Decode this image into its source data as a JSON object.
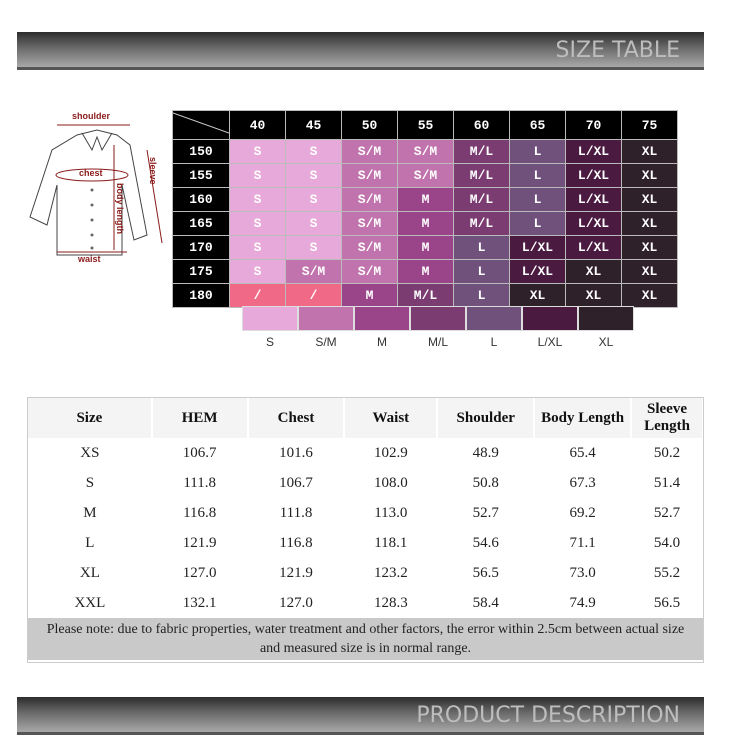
{
  "banners": {
    "top": "SIZE TABLE",
    "bottom": "PRODUCT DESCRIPTION"
  },
  "diagram": {
    "labels": {
      "shoulder": "shoulder",
      "chest": "chest",
      "sleeve": "sleeve",
      "body_length": "body length",
      "waist": "waist"
    }
  },
  "size_grid": {
    "columns": [
      "40",
      "45",
      "50",
      "55",
      "60",
      "65",
      "70",
      "75"
    ],
    "rows": [
      {
        "height": "150",
        "sizes": [
          "S",
          "S",
          "S/M",
          "S/M",
          "M/L",
          "L",
          "L/XL",
          "XL"
        ]
      },
      {
        "height": "155",
        "sizes": [
          "S",
          "S",
          "S/M",
          "S/M",
          "M/L",
          "L",
          "L/XL",
          "XL"
        ]
      },
      {
        "height": "160",
        "sizes": [
          "S",
          "S",
          "S/M",
          "M",
          "M/L",
          "L",
          "L/XL",
          "XL"
        ]
      },
      {
        "height": "165",
        "sizes": [
          "S",
          "S",
          "S/M",
          "M",
          "M/L",
          "L",
          "L/XL",
          "XL"
        ]
      },
      {
        "height": "170",
        "sizes": [
          "S",
          "S",
          "S/M",
          "M",
          "L",
          "L/XL",
          "L/XL",
          "XL"
        ]
      },
      {
        "height": "175",
        "sizes": [
          "S",
          "S/M",
          "S/M",
          "M",
          "L",
          "L/XL",
          "XL",
          "XL"
        ]
      },
      {
        "height": "180",
        "sizes": [
          "/",
          "/",
          "M",
          "M/L",
          "L",
          "XL",
          "XL",
          "XL"
        ]
      }
    ],
    "colors": {
      "S": "#e6a9d9",
      "S/M": "#c073ac",
      "M": "#9a4589",
      "M/L": "#7b3c71",
      "L": "#6f517b",
      "L/XL": "#4a1a41",
      "XL": "#2e2129",
      "/": "#f06a88"
    },
    "legend": [
      "S",
      "S/M",
      "M",
      "M/L",
      "L",
      "L/XL",
      "XL"
    ]
  },
  "measure_table": {
    "headers": [
      "Size",
      "HEM",
      "Chest",
      "Waist",
      "Shoulder",
      "Body Length",
      "Sleeve Length"
    ],
    "rows": [
      [
        "XS",
        "106.7",
        "101.6",
        "102.9",
        "48.9",
        "65.4",
        "50.2"
      ],
      [
        "S",
        "111.8",
        "106.7",
        "108.0",
        "50.8",
        "67.3",
        "51.4"
      ],
      [
        "M",
        "116.8",
        "111.8",
        "113.0",
        "52.7",
        "69.2",
        "52.7"
      ],
      [
        "L",
        "121.9",
        "116.8",
        "118.1",
        "54.6",
        "71.1",
        "54.0"
      ],
      [
        "XL",
        "127.0",
        "121.9",
        "123.2",
        "56.5",
        "73.0",
        "55.2"
      ],
      [
        "XXL",
        "132.1",
        "127.0",
        "128.3",
        "58.4",
        "74.9",
        "56.5"
      ]
    ],
    "note_line1": "Please note: due to fabric properties, water treatment and other factors, the error within 2.5cm between actual size",
    "note_line2": "and measured size is in normal range."
  }
}
